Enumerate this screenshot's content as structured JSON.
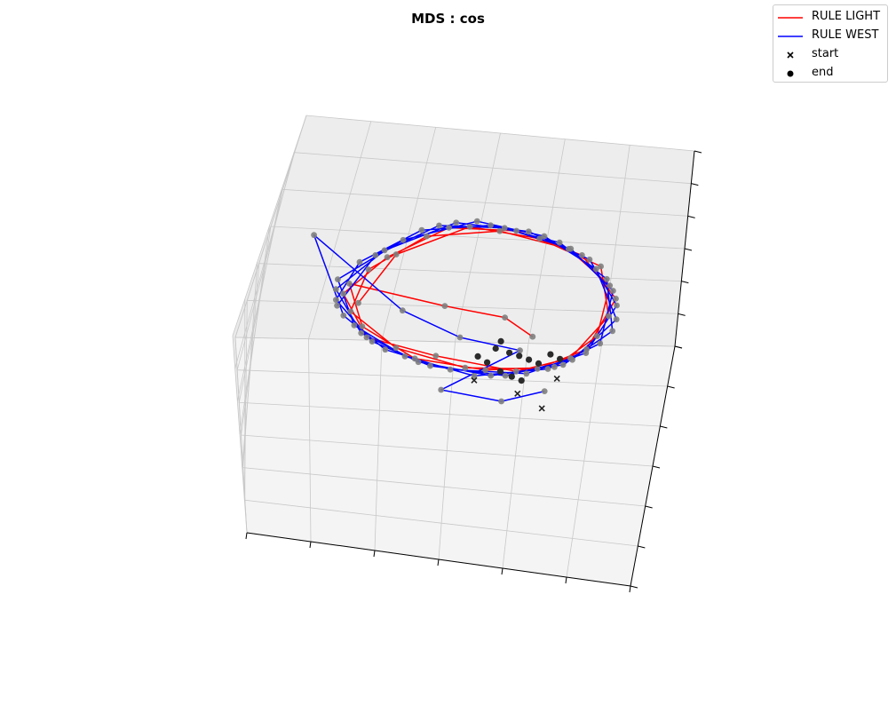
{
  "chart_data": {
    "type": "line",
    "projection": "3d",
    "title": "MDS : cos",
    "xlabel": "",
    "ylabel": "",
    "zlabel": "",
    "grid": true,
    "tick_labels_visible": false,
    "legend_placement": "top-right",
    "series": [
      {
        "name": "RULE LIGHT",
        "color": "#ff0000",
        "points": [
          [
            -0.52,
            0.05,
            0.15
          ],
          [
            -0.38,
            0.45,
            0.25
          ],
          [
            -0.05,
            0.72,
            0.3
          ],
          [
            0.3,
            0.7,
            0.22
          ],
          [
            0.62,
            0.5,
            0.1
          ],
          [
            0.7,
            0.05,
            -0.05
          ],
          [
            0.55,
            -0.4,
            -0.1
          ],
          [
            0.3,
            -0.62,
            -0.05
          ],
          [
            -0.1,
            -0.5,
            0.05
          ],
          [
            -0.45,
            -0.3,
            0.12
          ],
          [
            -0.6,
            0.1,
            0.2
          ],
          [
            -0.42,
            0.38,
            0.28
          ],
          [
            -0.15,
            0.66,
            0.33
          ],
          [
            0.18,
            0.74,
            0.26
          ],
          [
            0.52,
            0.58,
            0.15
          ],
          [
            0.72,
            0.2,
            0.0
          ],
          [
            0.62,
            -0.25,
            -0.12
          ],
          [
            0.4,
            -0.55,
            -0.08
          ],
          [
            0.05,
            -0.6,
            0.0
          ],
          [
            -0.3,
            -0.4,
            0.08
          ],
          [
            -0.55,
            -0.05,
            0.16
          ],
          [
            -0.5,
            0.3,
            0.24
          ],
          [
            -0.25,
            0.58,
            0.31
          ],
          [
            0.1,
            0.7,
            0.28
          ],
          [
            0.45,
            0.62,
            0.18
          ],
          [
            0.68,
            0.32,
            0.04
          ],
          [
            0.66,
            -0.12,
            -0.1
          ],
          [
            0.48,
            -0.48,
            -0.11
          ],
          [
            0.15,
            -0.62,
            -0.02
          ],
          [
            -0.2,
            -0.52,
            0.06
          ],
          [
            -0.48,
            -0.2,
            0.14
          ],
          [
            -0.58,
            0.18,
            0.22
          ],
          [
            -0.1,
            0.1,
            0.05
          ],
          [
            0.2,
            0.0,
            0.0
          ],
          [
            0.35,
            -0.2,
            -0.04
          ]
        ]
      },
      {
        "name": "RULE WEST",
        "color": "#0000ff",
        "points": [
          [
            -0.62,
            0.0,
            0.18
          ],
          [
            -0.48,
            0.42,
            0.27
          ],
          [
            -0.2,
            0.7,
            0.32
          ],
          [
            0.12,
            0.76,
            0.27
          ],
          [
            0.46,
            0.64,
            0.17
          ],
          [
            0.7,
            0.28,
            0.02
          ],
          [
            0.68,
            -0.18,
            -0.12
          ],
          [
            0.45,
            -0.52,
            -0.1
          ],
          [
            0.1,
            -0.66,
            -0.03
          ],
          [
            -0.25,
            -0.48,
            0.06
          ],
          [
            -0.52,
            -0.18,
            0.14
          ],
          [
            -0.64,
            0.22,
            0.23
          ],
          [
            -0.36,
            0.55,
            0.3
          ],
          [
            -0.02,
            0.78,
            0.31
          ],
          [
            0.32,
            0.72,
            0.23
          ],
          [
            0.6,
            0.46,
            0.1
          ],
          [
            0.74,
            0.02,
            -0.06
          ],
          [
            0.56,
            -0.38,
            -0.12
          ],
          [
            0.25,
            -0.64,
            -0.06
          ],
          [
            -0.12,
            -0.58,
            0.03
          ],
          [
            -0.42,
            -0.34,
            0.11
          ],
          [
            -0.63,
            0.05,
            0.19
          ],
          [
            -0.55,
            0.36,
            0.26
          ],
          [
            -0.28,
            0.64,
            0.32
          ],
          [
            0.05,
            0.76,
            0.29
          ],
          [
            0.4,
            0.68,
            0.2
          ],
          [
            0.66,
            0.38,
            0.06
          ],
          [
            0.73,
            -0.08,
            -0.09
          ],
          [
            0.52,
            -0.46,
            -0.11
          ],
          [
            0.18,
            -0.66,
            -0.04
          ],
          [
            -0.18,
            -0.55,
            0.05
          ],
          [
            -0.48,
            -0.26,
            0.13
          ],
          [
            -0.64,
            0.14,
            0.21
          ],
          [
            -0.44,
            0.46,
            0.28
          ],
          [
            -0.12,
            0.74,
            0.32
          ],
          [
            0.24,
            0.75,
            0.25
          ],
          [
            0.56,
            0.55,
            0.13
          ],
          [
            0.73,
            0.14,
            -0.02
          ],
          [
            0.62,
            -0.3,
            -0.12
          ],
          [
            0.35,
            -0.6,
            -0.08
          ],
          [
            -0.02,
            -0.62,
            0.01
          ],
          [
            -0.35,
            -0.42,
            0.09
          ],
          [
            -0.58,
            -0.1,
            0.17
          ],
          [
            -0.8,
            0.55,
            0.35
          ],
          [
            -0.3,
            0.0,
            0.1
          ],
          [
            0.0,
            -0.25,
            0.02
          ],
          [
            0.3,
            -0.35,
            -0.05
          ],
          [
            -0.05,
            -0.8,
            -0.02
          ],
          [
            0.25,
            -0.88,
            -0.1
          ],
          [
            0.45,
            -0.7,
            -0.15
          ]
        ]
      }
    ],
    "markers": [
      {
        "name": "start",
        "shape": "x",
        "color": "#000000"
      },
      {
        "name": "end",
        "shape": "o",
        "color": "#000000"
      }
    ],
    "start_points": [
      [
        0.1,
        -0.62,
        -0.08
      ],
      [
        0.32,
        -0.72,
        -0.14
      ],
      [
        0.5,
        -0.55,
        -0.15
      ],
      [
        0.45,
        -0.85,
        -0.18
      ]
    ],
    "end_points": [
      [
        0.18,
        -0.3,
        -0.05
      ],
      [
        0.25,
        -0.35,
        -0.06
      ],
      [
        0.3,
        -0.38,
        -0.07
      ],
      [
        0.35,
        -0.42,
        -0.08
      ],
      [
        0.4,
        -0.46,
        -0.09
      ],
      [
        0.15,
        -0.45,
        -0.06
      ],
      [
        0.22,
        -0.52,
        -0.09
      ],
      [
        0.28,
        -0.58,
        -0.1
      ],
      [
        0.33,
        -0.62,
        -0.11
      ],
      [
        0.1,
        -0.4,
        -0.04
      ],
      [
        0.45,
        -0.35,
        -0.09
      ],
      [
        0.5,
        -0.4,
        -0.1
      ],
      [
        0.2,
        -0.25,
        -0.03
      ]
    ]
  }
}
